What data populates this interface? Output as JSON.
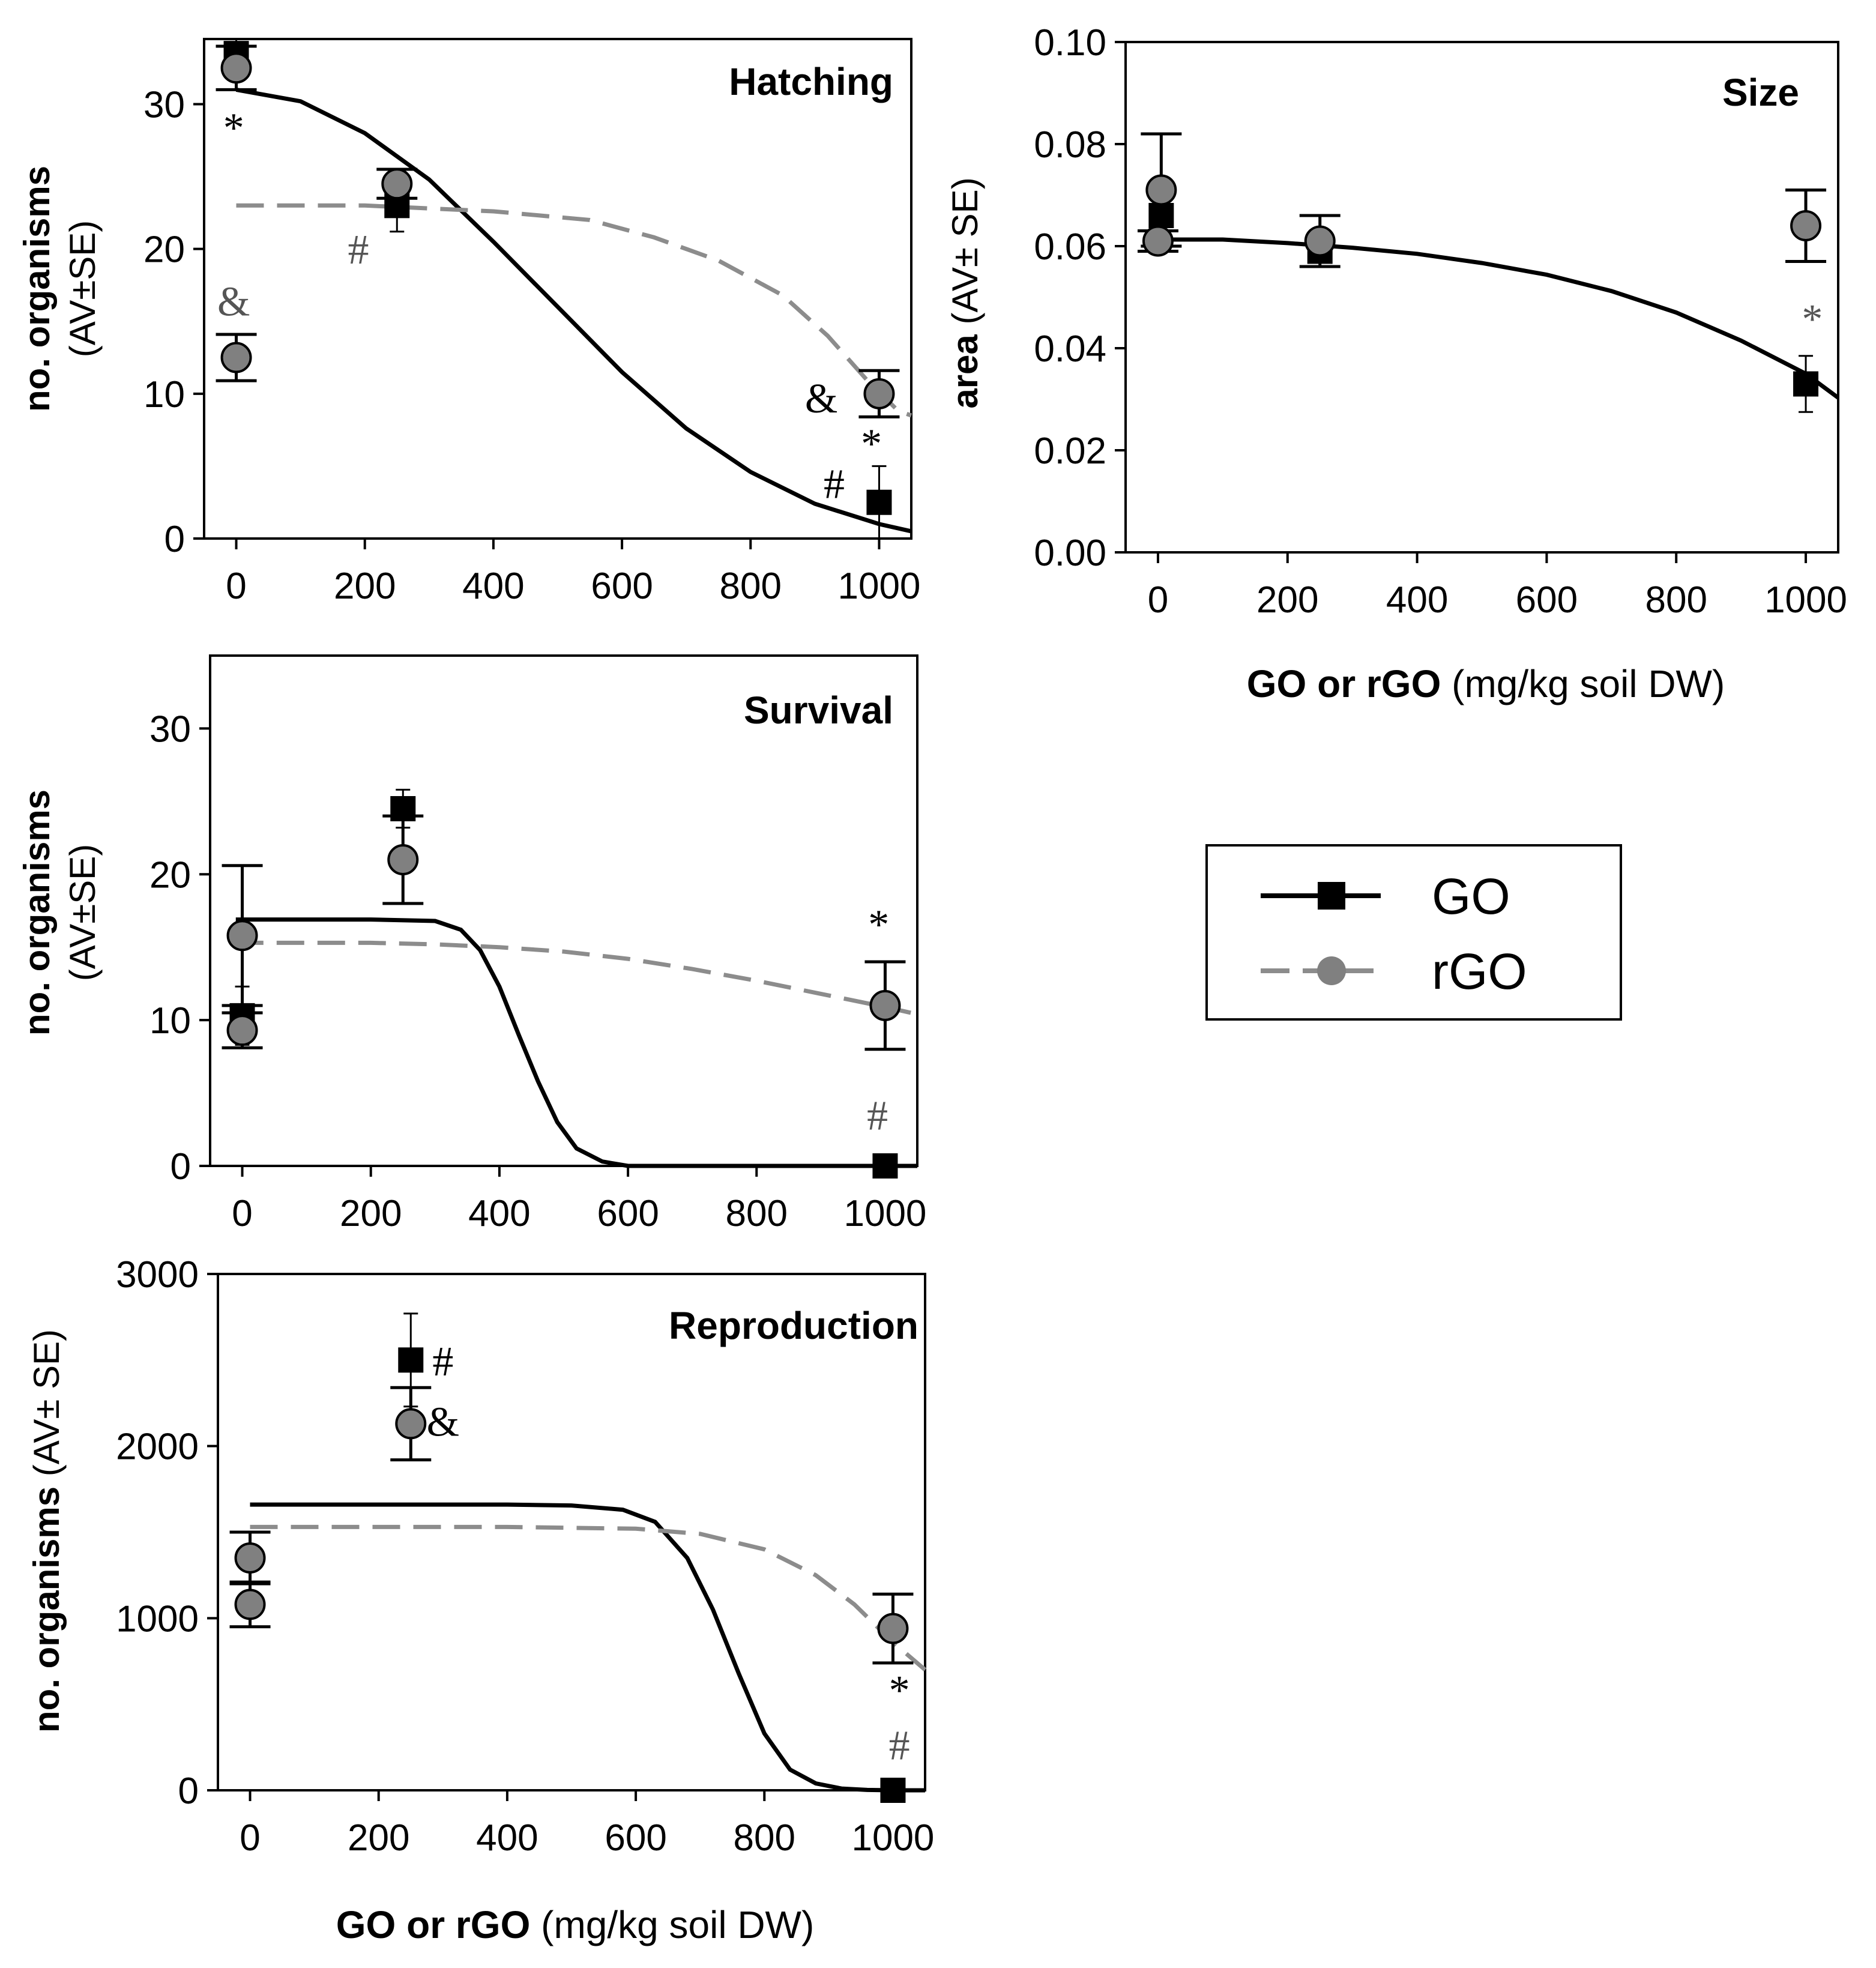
{
  "colors": {
    "go": "#000000",
    "rgo_line": "#8c8c8c",
    "rgo_marker": "#808080",
    "frame": "#000000"
  },
  "legend": {
    "go": "GO",
    "rgo": "rGO"
  },
  "chart_data": [
    {
      "id": "hatching",
      "type": "scatter",
      "title": "Hatching",
      "ylabel_bold": "no. organisms",
      "ylabel_normal": "(AV±SE)",
      "xlabel_bold": "",
      "xlabel_normal": "",
      "xlim": [
        -50,
        1050
      ],
      "ylim": [
        0,
        34.5
      ],
      "xticks": [
        0,
        200,
        400,
        600,
        800,
        1000
      ],
      "yticks": [
        0,
        10,
        20,
        30
      ],
      "ytick_labels": [
        "0",
        "10",
        "20",
        "30"
      ],
      "xtick_labels": [
        "0",
        "200",
        "400",
        "600",
        "800",
        "1000"
      ],
      "series": [
        {
          "name": "GO",
          "points": [
            {
              "x": 0,
              "y": 33.5,
              "se": 1.0
            },
            {
              "x": 250,
              "y": 23.0,
              "se": 1.8
            },
            {
              "x": 1000,
              "y": 2.5,
              "se": 2.5
            }
          ],
          "fit": [
            [
              0,
              31.0
            ],
            [
              100,
              30.2
            ],
            [
              200,
              28.0
            ],
            [
              300,
              24.8
            ],
            [
              400,
              20.5
            ],
            [
              500,
              16.0
            ],
            [
              600,
              11.5
            ],
            [
              700,
              7.6
            ],
            [
              800,
              4.6
            ],
            [
              900,
              2.4
            ],
            [
              1000,
              1.0
            ],
            [
              1050,
              0.5
            ]
          ]
        },
        {
          "name": "rGO",
          "points": [
            {
              "x": 0,
              "y": 32.5,
              "se": 1.5
            },
            {
              "x": 0,
              "y": 12.5,
              "se": 1.6
            },
            {
              "x": 250,
              "y": 24.5,
              "se": 1.0
            },
            {
              "x": 1000,
              "y": 10.0,
              "se": 1.6
            }
          ],
          "fit": [
            [
              0,
              23.0
            ],
            [
              200,
              23.0
            ],
            [
              400,
              22.6
            ],
            [
              550,
              22.0
            ],
            [
              650,
              20.8
            ],
            [
              750,
              19.2
            ],
            [
              850,
              16.8
            ],
            [
              920,
              14.0
            ],
            [
              980,
              11.0
            ],
            [
              1030,
              8.8
            ],
            [
              1050,
              8.5
            ]
          ]
        }
      ],
      "annotations": [
        {
          "text": "*",
          "x": -4,
          "y": 27.4,
          "color": "#000000"
        },
        {
          "text": "&",
          "x": -4,
          "y": 15.4,
          "color": "#555555"
        },
        {
          "text": "#",
          "x": 190,
          "y": 19.0,
          "color": "#555555"
        },
        {
          "text": "&",
          "x": 910,
          "y": 8.7,
          "color": "#000000"
        },
        {
          "text": "*",
          "x": 988,
          "y": 5.6,
          "color": "#000000"
        },
        {
          "text": "#",
          "x": 930,
          "y": 2.8,
          "color": "#000000"
        }
      ]
    },
    {
      "id": "size",
      "type": "scatter",
      "title": "Size",
      "ylabel_bold": "area",
      "ylabel_normal": "(AV± SE)",
      "xlabel_bold": "GO or rGO",
      "xlabel_normal": "(mg/kg soil DW)",
      "xlim": [
        -50,
        1050
      ],
      "ylim": [
        0,
        0.1
      ],
      "xticks": [
        0,
        200,
        400,
        600,
        800,
        1000
      ],
      "yticks": [
        0,
        0.02,
        0.04,
        0.06,
        0.08,
        0.1
      ],
      "ytick_labels": [
        "0.00",
        "0.02",
        "0.04",
        "0.06",
        "0.08",
        "0.10"
      ],
      "xtick_labels": [
        "0",
        "200",
        "400",
        "600",
        "800",
        "1000"
      ],
      "series": [
        {
          "name": "GO",
          "points": [
            {
              "x": 5,
              "y": 0.066,
              "se": 0.003
            },
            {
              "x": 250,
              "y": 0.059,
              "se": 0.003
            },
            {
              "x": 1000,
              "y": 0.033,
              "se": 0.0055
            }
          ],
          "fit": [
            [
              -5,
              0.0613
            ],
            [
              100,
              0.0613
            ],
            [
              200,
              0.0606
            ],
            [
              300,
              0.0597
            ],
            [
              400,
              0.0585
            ],
            [
              500,
              0.0567
            ],
            [
              600,
              0.0544
            ],
            [
              700,
              0.0512
            ],
            [
              800,
              0.047
            ],
            [
              900,
              0.0415
            ],
            [
              1000,
              0.035
            ],
            [
              1050,
              0.0303
            ]
          ]
        },
        {
          "name": "rGO",
          "points": [
            {
              "x": 5,
              "y": 0.071,
              "se": 0.011
            },
            {
              "x": 0,
              "y": 0.061,
              "se": 0.002
            },
            {
              "x": 250,
              "y": 0.061,
              "se": 0.005
            },
            {
              "x": 1000,
              "y": 0.064,
              "se": 0.007
            }
          ],
          "fit": []
        }
      ],
      "annotations": [
        {
          "text": "*",
          "x": 1010,
          "y": 0.043,
          "color": "#555555"
        }
      ]
    },
    {
      "id": "survival",
      "type": "scatter",
      "title": "Survival",
      "ylabel_bold": "no. organisms",
      "ylabel_normal": "(AV±SE)",
      "xlabel_bold": "",
      "xlabel_normal": "",
      "xlim": [
        -50,
        1050
      ],
      "ylim": [
        0,
        35
      ],
      "xticks": [
        0,
        200,
        400,
        600,
        800,
        1000
      ],
      "yticks": [
        0,
        10,
        20,
        30
      ],
      "ytick_labels": [
        "0",
        "10",
        "20",
        "30"
      ],
      "xtick_labels": [
        "0",
        "200",
        "400",
        "600",
        "800",
        "1000"
      ],
      "series": [
        {
          "name": "GO",
          "points": [
            {
              "x": 0,
              "y": 10.3,
              "se": 2.0
            },
            {
              "x": 250,
              "y": 24.5,
              "se": 1.3
            },
            {
              "x": 1000,
              "y": 0.0,
              "se": 0.0
            }
          ],
          "fit": [
            [
              -10,
              16.9
            ],
            [
              100,
              16.9
            ],
            [
              200,
              16.9
            ],
            [
              300,
              16.8
            ],
            [
              340,
              16.2
            ],
            [
              370,
              14.8
            ],
            [
              400,
              12.3
            ],
            [
              430,
              9.0
            ],
            [
              460,
              5.8
            ],
            [
              490,
              3.0
            ],
            [
              520,
              1.2
            ],
            [
              560,
              0.3
            ],
            [
              600,
              0.0
            ],
            [
              700,
              0.0
            ],
            [
              800,
              0.0
            ],
            [
              900,
              0.0
            ],
            [
              1000,
              0.0
            ],
            [
              1050,
              0.0
            ]
          ]
        },
        {
          "name": "rGO",
          "points": [
            {
              "x": 0,
              "y": 15.8,
              "se": 4.8
            },
            {
              "x": 0,
              "y": 9.3,
              "se": 1.2
            },
            {
              "x": 250,
              "y": 21.0,
              "se": 3.0
            },
            {
              "x": 1000,
              "y": 11.0,
              "se": 3.0
            }
          ],
          "fit": [
            [
              -10,
              15.3
            ],
            [
              100,
              15.3
            ],
            [
              200,
              15.3
            ],
            [
              300,
              15.2
            ],
            [
              400,
              15.0
            ],
            [
              500,
              14.7
            ],
            [
              600,
              14.2
            ],
            [
              700,
              13.5
            ],
            [
              800,
              12.7
            ],
            [
              900,
              11.8
            ],
            [
              1000,
              10.9
            ],
            [
              1050,
              10.4
            ]
          ]
        }
      ],
      "annotations": [
        {
          "text": "*",
          "x": 990,
          "y": 15.6,
          "color": "#000000"
        },
        {
          "text": "#",
          "x": 988,
          "y": 2.5,
          "color": "#555555"
        }
      ]
    },
    {
      "id": "reproduction",
      "type": "scatter",
      "title": "Reproduction",
      "ylabel_bold": "no. organisms",
      "ylabel_normal": "(AV± SE)",
      "xlabel_bold": "GO or rGO",
      "xlabel_normal": "(mg/kg soil DW)",
      "xlim": [
        -50,
        1050
      ],
      "ylim": [
        0,
        3000
      ],
      "xticks": [
        0,
        200,
        400,
        600,
        800,
        1000
      ],
      "yticks": [
        0,
        1000,
        2000,
        3000
      ],
      "ytick_labels": [
        "0",
        "1000",
        "2000",
        "3000"
      ],
      "xtick_labels": [
        "0",
        "200",
        "400",
        "600",
        "800",
        "1000"
      ],
      "series": [
        {
          "name": "GO",
          "points": [
            {
              "x": 250,
              "y": 2500,
              "se": 270
            },
            {
              "x": 1000,
              "y": 0,
              "se": 0
            }
          ],
          "fit": [
            [
              0,
              1660
            ],
            [
              200,
              1660
            ],
            [
              400,
              1660
            ],
            [
              500,
              1655
            ],
            [
              580,
              1630
            ],
            [
              630,
              1560
            ],
            [
              680,
              1350
            ],
            [
              720,
              1050
            ],
            [
              760,
              680
            ],
            [
              800,
              330
            ],
            [
              840,
              120
            ],
            [
              880,
              40
            ],
            [
              920,
              10
            ],
            [
              960,
              2
            ],
            [
              1000,
              0
            ],
            [
              1050,
              0
            ]
          ]
        },
        {
          "name": "rGO",
          "points": [
            {
              "x": 0,
              "y": 1350,
              "se": 150
            },
            {
              "x": 0,
              "y": 1080,
              "se": 130
            },
            {
              "x": 250,
              "y": 2130,
              "se": 210
            },
            {
              "x": 1000,
              "y": 940,
              "se": 200
            }
          ],
          "fit": [
            [
              0,
              1530
            ],
            [
              200,
              1530
            ],
            [
              400,
              1530
            ],
            [
              600,
              1520
            ],
            [
              700,
              1490
            ],
            [
              800,
              1400
            ],
            [
              880,
              1250
            ],
            [
              940,
              1080
            ],
            [
              1000,
              860
            ],
            [
              1050,
              700
            ]
          ]
        }
      ],
      "annotations": [
        {
          "text": "#",
          "x": 300,
          "y": 2410,
          "color": "#000000"
        },
        {
          "text": "&",
          "x": 300,
          "y": 2060,
          "color": "#000000"
        },
        {
          "text": "*",
          "x": 1010,
          "y": 500,
          "color": "#000000"
        },
        {
          "text": "#",
          "x": 1010,
          "y": 180,
          "color": "#555555"
        }
      ]
    }
  ]
}
